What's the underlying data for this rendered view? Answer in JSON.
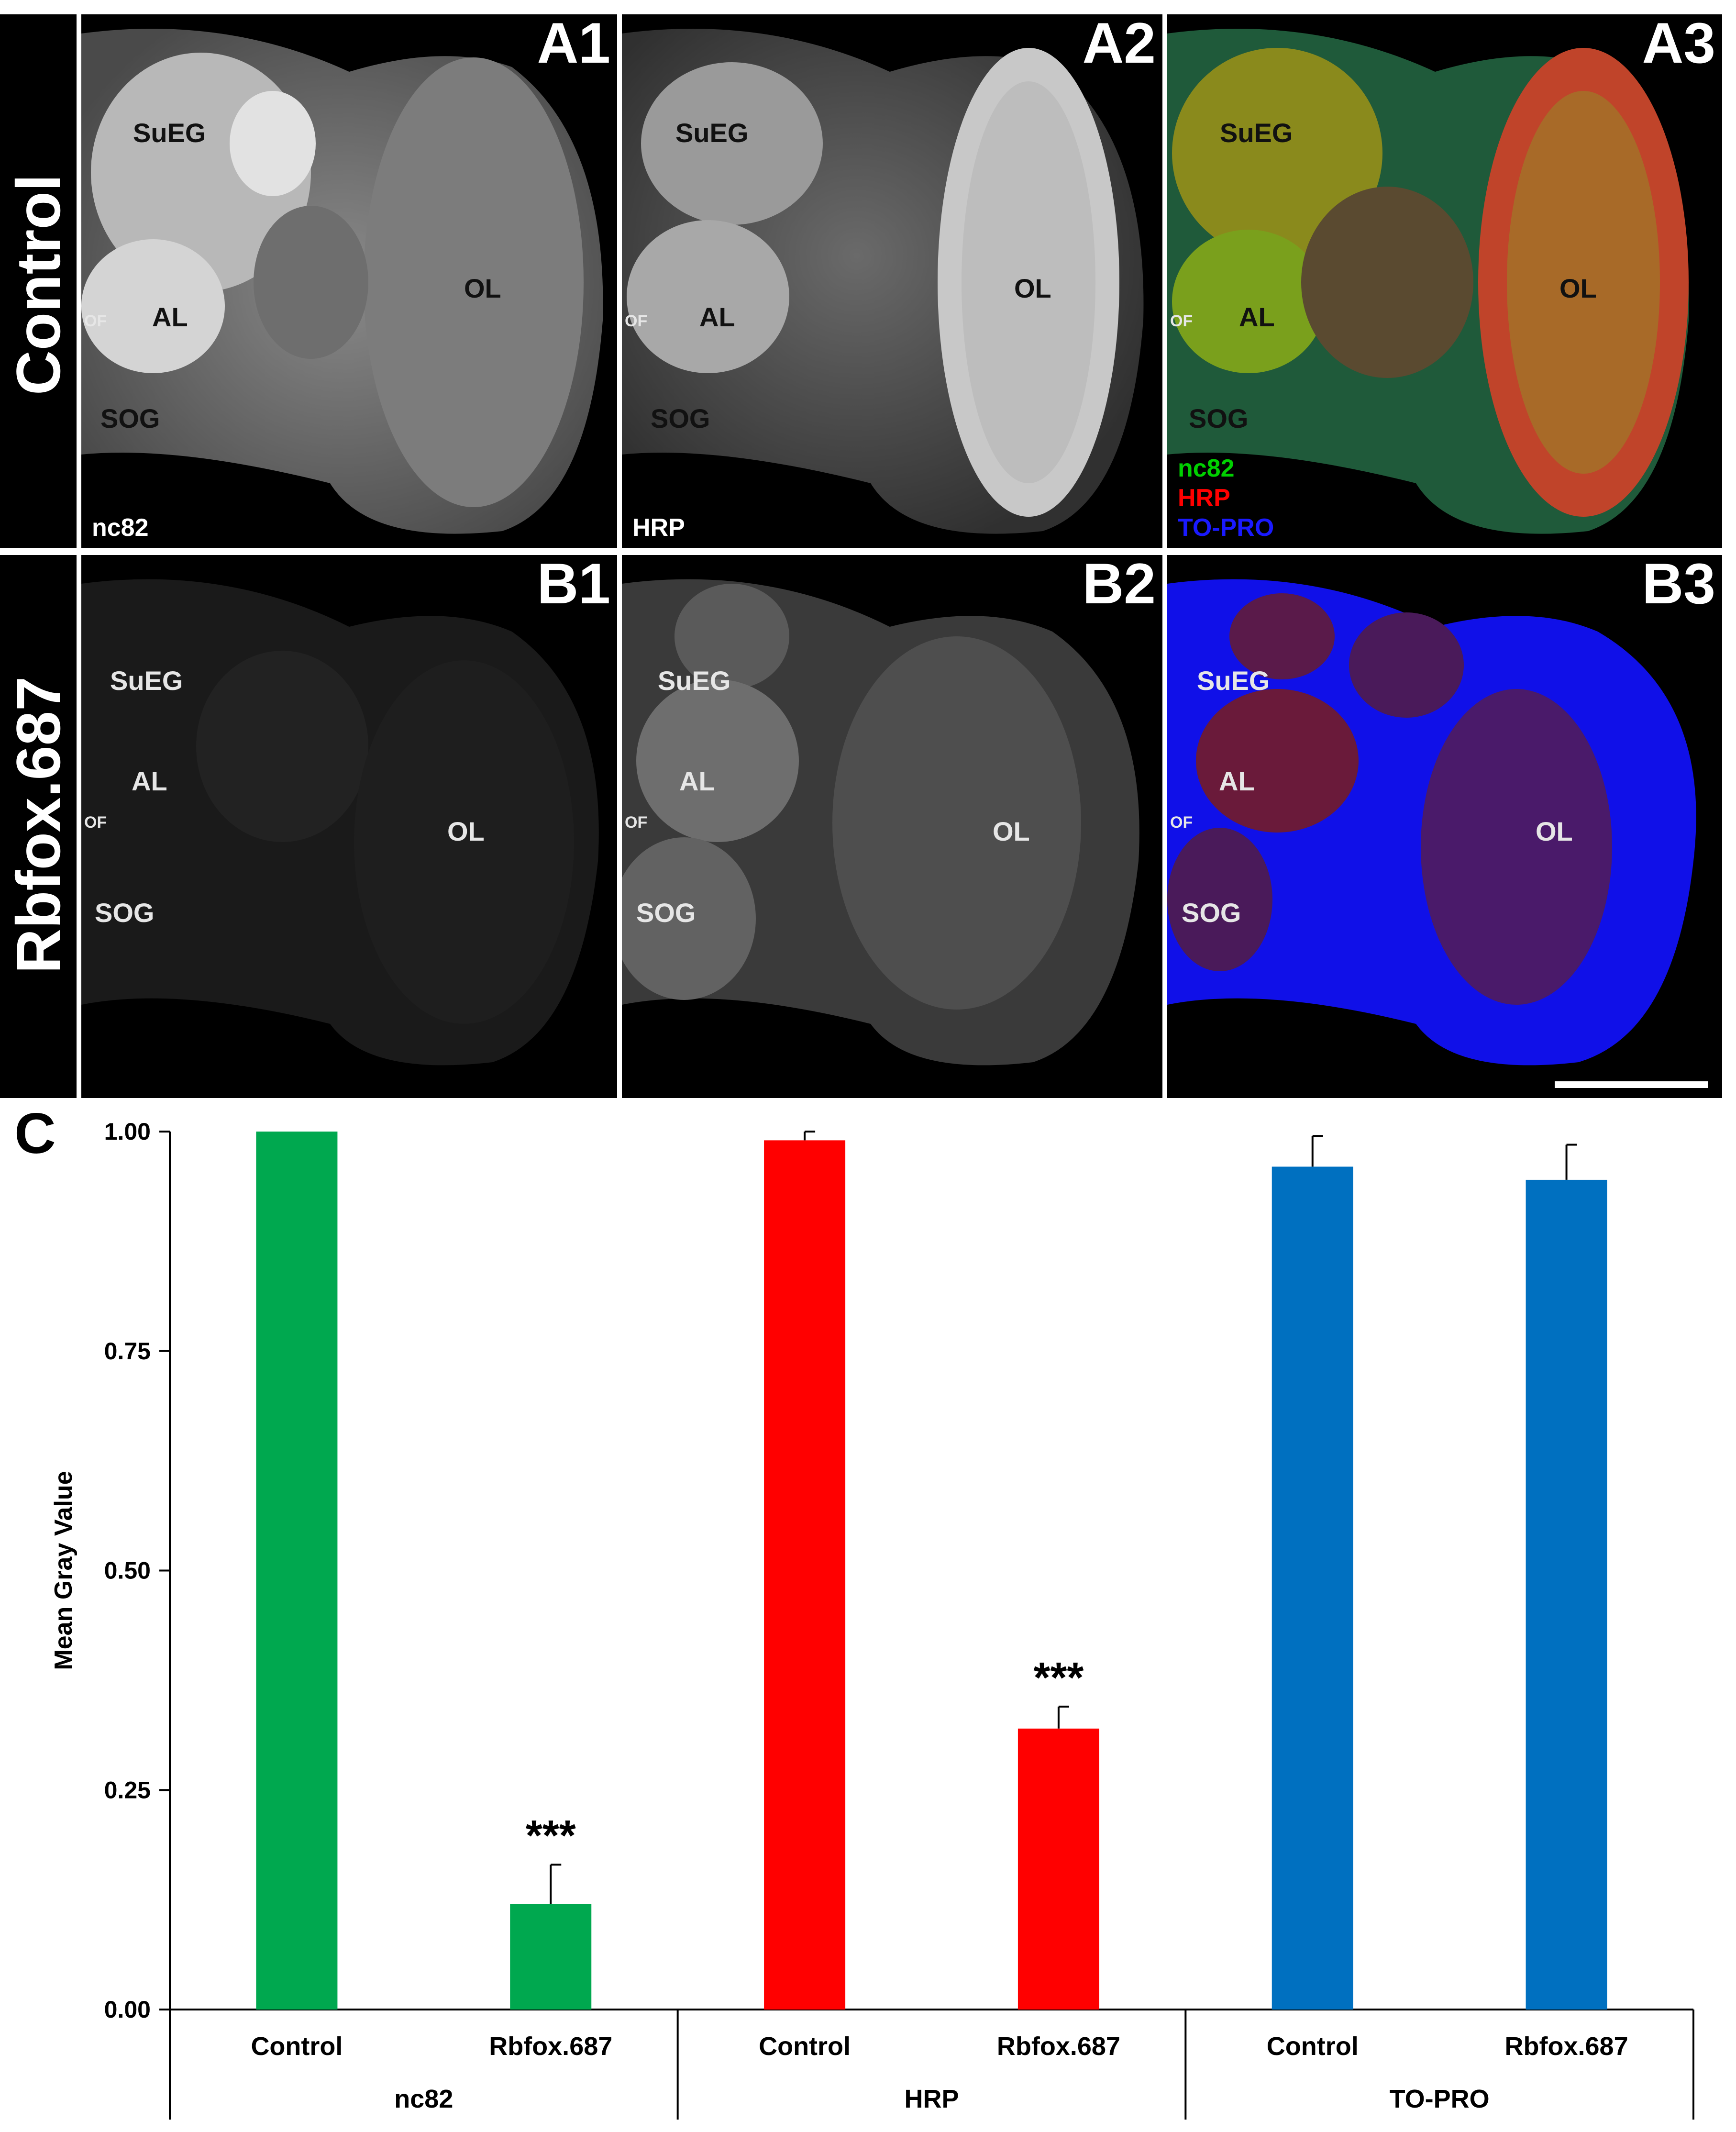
{
  "rows": [
    {
      "label": "Control"
    },
    {
      "label": "Rbfox.687"
    }
  ],
  "panels": {
    "A1": {
      "id": "A1",
      "stain": "nc82"
    },
    "A2": {
      "id": "A2",
      "stain": "HRP"
    },
    "A3": {
      "id": "A3",
      "legend": [
        "nc82",
        "HRP",
        "TO-PRO"
      ]
    },
    "B1": {
      "id": "B1"
    },
    "B2": {
      "id": "B2"
    },
    "B3": {
      "id": "B3"
    }
  },
  "regions": {
    "suEG": "SuEG",
    "al": "AL",
    "of": "OF",
    "sog": "SOG",
    "ol": "OL"
  },
  "colors": {
    "nc82": "#00a84f",
    "hrp": "#ff0000",
    "topro": "#0070c0",
    "legend_green": "#00d000",
    "legend_red": "#ff0000",
    "legend_blue": "#1a1aff"
  },
  "chart_label": "C",
  "chart_data": {
    "type": "bar",
    "ylabel": "Mean Gray Value",
    "ylim": [
      0,
      1.0
    ],
    "yticks": [
      "0.00",
      "0.25",
      "0.50",
      "0.75",
      "1.00"
    ],
    "groups": [
      {
        "name": "nc82",
        "color": "#00a84f",
        "bars": [
          {
            "label": "Control",
            "value": 1.0,
            "error": 0.0,
            "sig": ""
          },
          {
            "label": "Rbfox.687",
            "value": 0.12,
            "error": 0.045,
            "sig": "***"
          }
        ]
      },
      {
        "name": "HRP",
        "color": "#ff0000",
        "bars": [
          {
            "label": "Control",
            "value": 0.99,
            "error": 0.01,
            "sig": ""
          },
          {
            "label": "Rbfox.687",
            "value": 0.32,
            "error": 0.025,
            "sig": "***"
          }
        ]
      },
      {
        "name": "TO-PRO",
        "color": "#0070c0",
        "bars": [
          {
            "label": "Control",
            "value": 0.96,
            "error": 0.035,
            "sig": ""
          },
          {
            "label": "Rbfox.687",
            "value": 0.945,
            "error": 0.04,
            "sig": ""
          }
        ]
      }
    ]
  }
}
